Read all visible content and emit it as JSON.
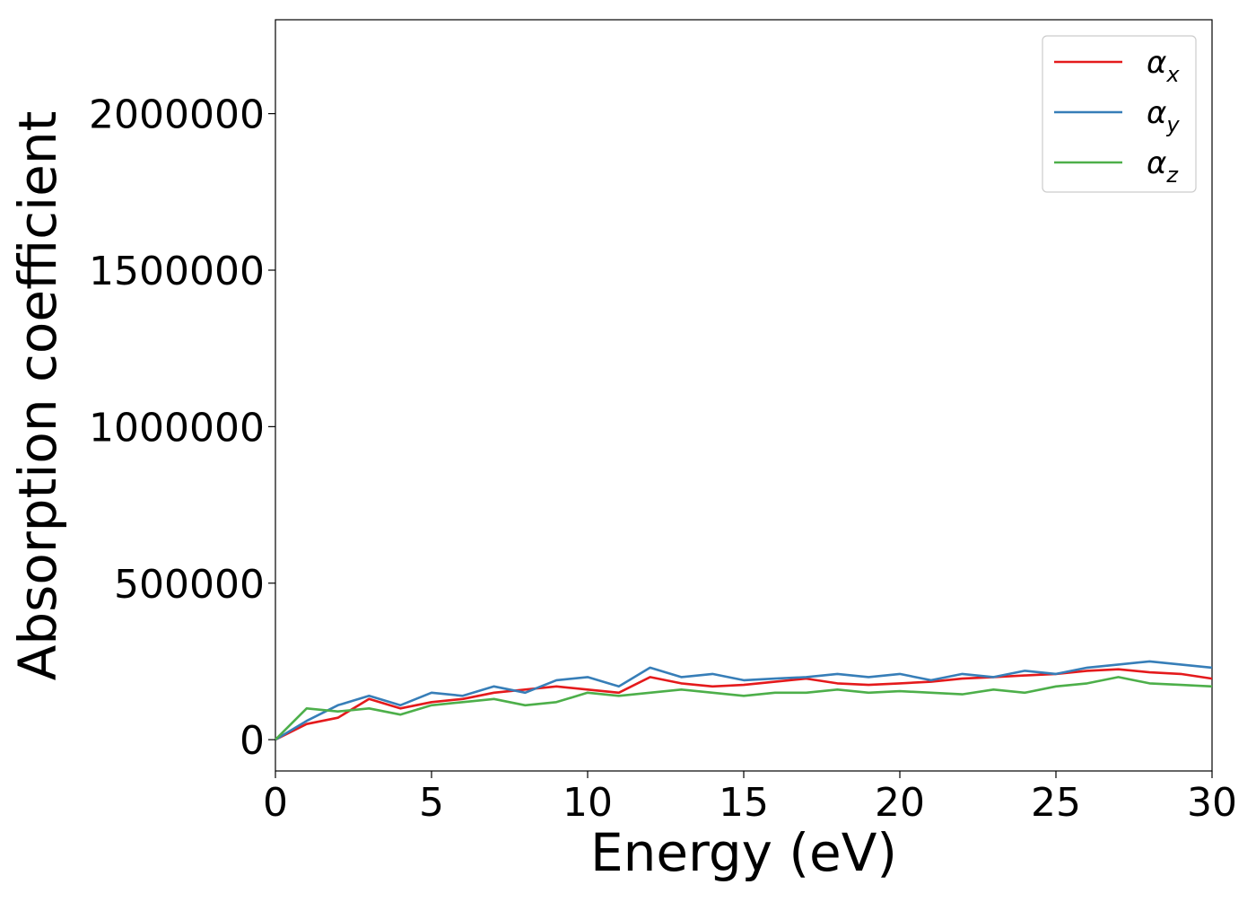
{
  "chart_data": {
    "type": "line",
    "title": "",
    "xlabel": "Energy (eV)",
    "ylabel": "Absorption coefficient",
    "xlim": [
      0,
      30
    ],
    "ylim": [
      -100000,
      2300000
    ],
    "xticks": [
      0,
      5,
      10,
      15,
      20,
      25,
      30
    ],
    "xtick_labels": [
      "0",
      "5",
      "10",
      "15",
      "20",
      "25",
      "30"
    ],
    "yticks": [
      0,
      500000,
      1000000,
      1500000,
      2000000
    ],
    "ytick_labels": [
      "0",
      "500000",
      "1000000",
      "1500000",
      "2000000"
    ],
    "grid": false,
    "legend_position": "top-right",
    "x": [
      0,
      1,
      2,
      3,
      4,
      5,
      6,
      7,
      8,
      9,
      10,
      11,
      12,
      13,
      14,
      15,
      16,
      17,
      18,
      19,
      20,
      21,
      22,
      23,
      24,
      25,
      26,
      27,
      28,
      29,
      30
    ],
    "series": [
      {
        "name": "α",
        "name_sub": "x",
        "color": "#e41a1c",
        "values": [
          0,
          50000,
          70000,
          130000,
          100000,
          120000,
          130000,
          150000,
          160000,
          170000,
          160000,
          150000,
          200000,
          180000,
          170000,
          175000,
          185000,
          195000,
          180000,
          175000,
          180000,
          185000,
          195000,
          200000,
          205000,
          210000,
          220000,
          225000,
          215000,
          210000,
          195000
        ]
      },
      {
        "name": "α",
        "name_sub": "y",
        "color": "#377eb8",
        "values": [
          0,
          60000,
          110000,
          140000,
          110000,
          150000,
          140000,
          170000,
          150000,
          190000,
          200000,
          170000,
          230000,
          200000,
          210000,
          190000,
          195000,
          200000,
          210000,
          200000,
          210000,
          190000,
          210000,
          200000,
          220000,
          210000,
          230000,
          240000,
          250000,
          240000,
          230000
        ]
      },
      {
        "name": "α",
        "name_sub": "z",
        "color": "#4daf4a",
        "values": [
          0,
          100000,
          90000,
          100000,
          80000,
          110000,
          120000,
          130000,
          110000,
          120000,
          150000,
          140000,
          150000,
          160000,
          150000,
          140000,
          150000,
          150000,
          160000,
          150000,
          155000,
          150000,
          145000,
          160000,
          150000,
          170000,
          180000,
          200000,
          180000,
          175000,
          170000
        ]
      }
    ]
  }
}
